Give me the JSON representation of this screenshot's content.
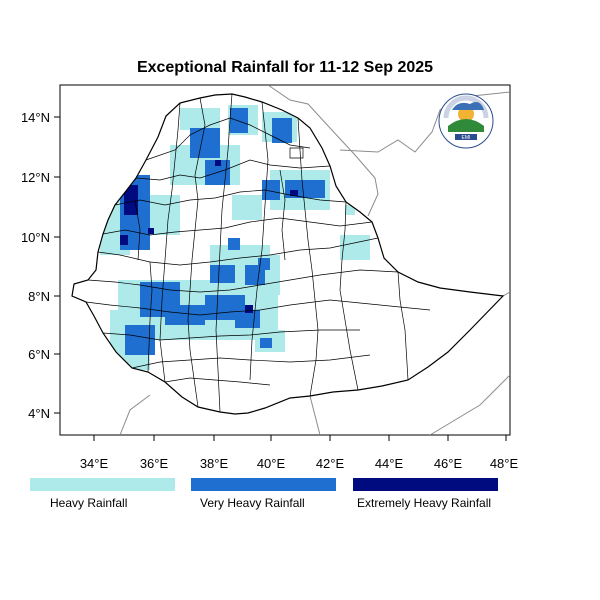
{
  "title": "Exceptional Rainfall for 11-12 Sep 2025",
  "x_ticks": [
    "34°E",
    "36°E",
    "38°E",
    "40°E",
    "42°E",
    "44°E",
    "46°E",
    "48°E"
  ],
  "y_ticks": [
    "14°N",
    "12°N",
    "10°N",
    "8°N",
    "6°N",
    "4°N"
  ],
  "legend": [
    {
      "label": "Heavy Rainfall",
      "color": "#aeeaea"
    },
    {
      "label": "Very Heavy Rainfall",
      "color": "#1e6fd0"
    },
    {
      "label": "Extremely Heavy Rainfall",
      "color": "#000b80"
    }
  ],
  "logo_text": {
    "top": "ETHIOPIA METEOROLOGY INSTITUTE",
    "bottom": "Ethiopian Meteorology Institute",
    "badge": "EMI"
  }
}
